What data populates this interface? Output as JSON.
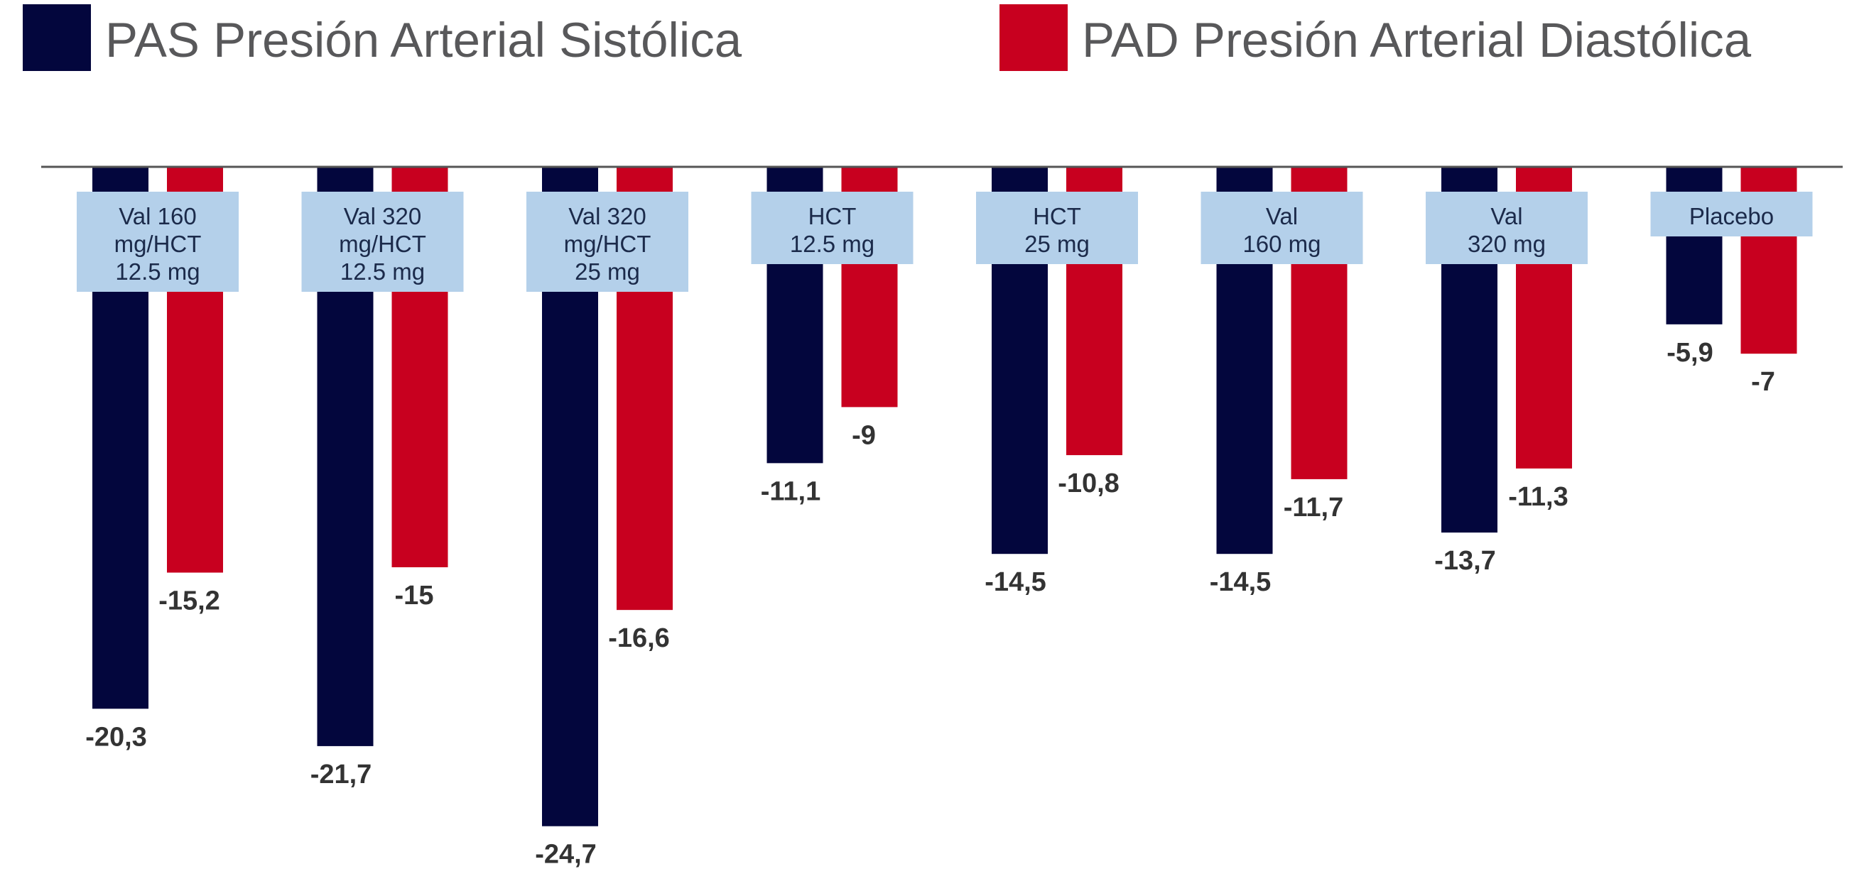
{
  "chart_data": {
    "type": "bar",
    "title": "",
    "xlabel": "",
    "ylabel": "",
    "ylim": [
      -25,
      0
    ],
    "grid": false,
    "legend_position": "top",
    "colors": {
      "systolic": "#03063d",
      "diastolic": "#c8001f",
      "label_box": "#b4d0ea",
      "axis": "#555555"
    },
    "categories": [
      [
        "Val 160",
        "mg/HCT",
        "12.5 mg"
      ],
      [
        "Val 320",
        "mg/HCT",
        "12.5 mg"
      ],
      [
        "Val 320",
        "mg/HCT",
        "25 mg"
      ],
      [
        "HCT",
        "12.5 mg"
      ],
      [
        "HCT",
        "25 mg"
      ],
      [
        "Val",
        "160 mg"
      ],
      [
        "Val",
        "320 mg"
      ],
      [
        "Placebo"
      ]
    ],
    "series": [
      {
        "name": "PAS Presión Arterial Sistólica",
        "color": "#03063d",
        "values": [
          -20.3,
          -21.7,
          -24.7,
          -11.1,
          -14.5,
          -14.5,
          -13.7,
          -5.9
        ],
        "labels": [
          "-20,3",
          "-21,7",
          "-24,7",
          "-11,1",
          "-14,5",
          "-14,5",
          "-13,7",
          "-5,9"
        ]
      },
      {
        "name": "PAD Presión Arterial Diastólica",
        "color": "#c8001f",
        "values": [
          -15.2,
          -15,
          -16.6,
          -9,
          -10.8,
          -11.7,
          -11.3,
          -7
        ],
        "labels": [
          "-15,2",
          "-15",
          "-16,6",
          "-9",
          "-10,8",
          "-11,7",
          "-11,3",
          "-7"
        ]
      }
    ]
  }
}
